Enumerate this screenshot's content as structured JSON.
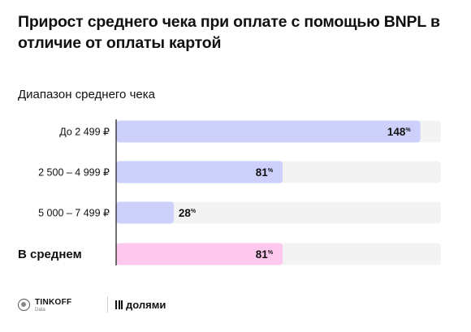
{
  "header": {
    "title": "Прирост среднего чека при оплате с помощью BNPL в отличие от оплаты картой",
    "subtitle": "Диапазон среднего чека"
  },
  "colors": {
    "bar_primary": "#cdd0fb",
    "bar_average": "#fdc8ee",
    "track": "#f3f3f3",
    "axis": "#111111"
  },
  "chart_data": {
    "type": "bar",
    "orientation": "horizontal",
    "unit": "%",
    "categories": [
      "До 2 499 ₽",
      "2 500 – 4 999 ₽",
      "5 000 – 7 499 ₽",
      "В среднем"
    ],
    "values": [
      148,
      81,
      28,
      81
    ],
    "highlight": [
      false,
      false,
      false,
      true
    ],
    "xlim": [
      0,
      158
    ],
    "grid": false,
    "legend": "none"
  },
  "footer": {
    "brand": "TINKOFF",
    "brand_sub": "Data",
    "partner": "долями"
  }
}
